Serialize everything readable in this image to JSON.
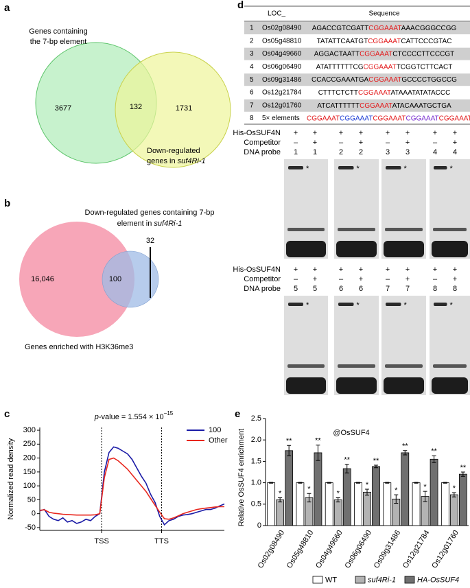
{
  "panel_a": {
    "label": "a",
    "title_lines": [
      "Genes containing",
      "the 7-bp element"
    ],
    "only_left": "3677",
    "overlap": "132",
    "only_right": "1731",
    "right_line1": "Down-regulated",
    "right_line2": "genes in ",
    "right_gene": "suf4Ri-1"
  },
  "panel_b": {
    "label": "b",
    "title_line1": "Down-regulated genes containing 7-bp",
    "title_line2": "element in ",
    "title_gene": "suf4Ri-1",
    "only_big": "16,046",
    "overlap": "100",
    "only_small": "32",
    "caption": "Genes enriched with H3K36me3"
  },
  "panel_d": {
    "label": "d",
    "table": {
      "header": [
        "LOC_",
        "Sequence"
      ],
      "rows": [
        {
          "index": "1",
          "locus": "Os02g08490",
          "sequence": [
            {
              "text": "AGACCGTCGATT",
              "color": "#000000"
            },
            {
              "text": "CGGAAAT",
              "color": "#e31a1c"
            },
            {
              "text": "AAACGGGCCGG",
              "color": "#000000"
            }
          ]
        },
        {
          "index": "2",
          "locus": "Os05g48810",
          "sequence": [
            {
              "text": "TATATTCAATGT",
              "color": "#000000"
            },
            {
              "text": "CGGAAAT",
              "color": "#e31a1c"
            },
            {
              "text": "CATTCCCGTAC",
              "color": "#000000"
            }
          ]
        },
        {
          "index": "3",
          "locus": "Os04g49660",
          "sequence": [
            {
              "text": "AGGACTAATT",
              "color": "#000000"
            },
            {
              "text": "CGGAAAT",
              "color": "#e31a1c"
            },
            {
              "text": "CTCCCCTTCCCGT",
              "color": "#000000"
            }
          ]
        },
        {
          "index": "4",
          "locus": "Os06g06490",
          "sequence": [
            {
              "text": "ATATTTTTTCG",
              "color": "#000000"
            },
            {
              "text": "CGGAAAT",
              "color": "#e31a1c"
            },
            {
              "text": "TCGGTCTTCACT",
              "color": "#000000"
            }
          ]
        },
        {
          "index": "5",
          "locus": "Os09g31486",
          "sequence": [
            {
              "text": "CCACCGAAATGA",
              "color": "#000000"
            },
            {
              "text": "CGGAAAT",
              "color": "#e31a1c"
            },
            {
              "text": "GCCCCTGGCCG",
              "color": "#000000"
            }
          ]
        },
        {
          "index": "6",
          "locus": "Os12g21784",
          "sequence": [
            {
              "text": "CTTTCTCTT",
              "color": "#000000"
            },
            {
              "text": "CGGAAAT",
              "color": "#e31a1c"
            },
            {
              "text": "ATAAATATATACCC",
              "color": "#000000"
            }
          ]
        },
        {
          "index": "7",
          "locus": "Os12g01760",
          "sequence": [
            {
              "text": "ATCATTTTTT",
              "color": "#000000"
            },
            {
              "text": "CGGAAAT",
              "color": "#e31a1c"
            },
            {
              "text": "ATACAAATGCTGA",
              "color": "#000000"
            }
          ]
        },
        {
          "index": "8",
          "locus": "5× elements",
          "sequence": [
            {
              "text": "CGGAAAT",
              "color": "#e31a1c"
            },
            {
              "text": "CGGAAAT",
              "color": "#1f3fd6"
            },
            {
              "text": "CGGAAAT",
              "color": "#e31a1c"
            },
            {
              "text": "CGGAAAT",
              "color": "#7a2fd0"
            },
            {
              "text": "CGGAAAT",
              "color": "#e31a1c"
            }
          ]
        }
      ]
    },
    "emsa": [
      {
        "row_labels": [
          "His-OsSUF4N",
          "Competitor",
          "DNA probe"
        ],
        "lanes": [
          [
            "+",
            "–",
            "1"
          ],
          [
            "+",
            "+",
            "1"
          ],
          [
            "+",
            "–",
            "2"
          ],
          [
            "+",
            "+",
            "2"
          ],
          [
            "+",
            "–",
            "3"
          ],
          [
            "+",
            "+",
            "3"
          ],
          [
            "+",
            "–",
            "4"
          ],
          [
            "+",
            "+",
            "4"
          ]
        ],
        "markers": [
          "*",
          "*",
          "*",
          "*"
        ]
      },
      {
        "row_labels": [
          "His-OsSUF4N",
          "Competitor",
          "DNA probe"
        ],
        "lanes": [
          [
            "+",
            "–",
            "5"
          ],
          [
            "+",
            "+",
            "5"
          ],
          [
            "+",
            "–",
            "6"
          ],
          [
            "+",
            "+",
            "6"
          ],
          [
            "+",
            "–",
            "7"
          ],
          [
            "+",
            "+",
            "7"
          ],
          [
            "+",
            "–",
            "8"
          ],
          [
            "+",
            "+",
            "8"
          ]
        ],
        "markers": [
          "*",
          "*",
          "*",
          "*"
        ]
      }
    ]
  },
  "chart_data": [
    {
      "type": "line",
      "label": "c",
      "title_italic": "p",
      "title_main": "-value = 1.554 × 10",
      "title_exponent": "−15",
      "ylabel": "Normalized read density",
      "x": [
        0,
        2.5,
        5,
        7.5,
        10,
        12.5,
        15,
        17.5,
        20,
        22.5,
        25,
        27.5,
        30,
        32.5,
        35,
        37.5,
        40,
        42.5,
        45,
        47.5,
        50,
        52.5,
        55,
        57.5,
        60,
        62.5,
        65,
        67.5,
        70,
        72.5,
        75,
        77.5,
        80,
        82.5,
        85,
        87.5,
        90,
        92.5,
        95,
        97.5,
        100
      ],
      "series": [
        {
          "name": "100",
          "color": "#1a1aa6",
          "values": [
            10,
            15,
            -10,
            -20,
            -25,
            -15,
            -30,
            -25,
            -35,
            -30,
            -20,
            -25,
            -10,
            0,
            150,
            220,
            240,
            235,
            225,
            215,
            195,
            165,
            135,
            110,
            70,
            40,
            -10,
            -40,
            -25,
            -20,
            -10,
            -5,
            -3,
            0,
            5,
            10,
            15,
            15,
            20,
            28,
            35
          ]
        },
        {
          "name": "Other",
          "color": "#e8261d",
          "values": [
            12,
            14,
            5,
            2,
            0,
            -2,
            -3,
            -4,
            -5,
            -5,
            -5,
            -5,
            -4,
            0,
            130,
            195,
            200,
            190,
            175,
            160,
            140,
            120,
            100,
            80,
            55,
            30,
            5,
            -18,
            -20,
            -15,
            -8,
            0,
            5,
            10,
            15,
            18,
            20,
            22,
            24,
            25,
            25
          ]
        }
      ],
      "xlim": [
        0,
        100
      ],
      "xticks": [
        {
          "value": 33.5,
          "label": "TSS"
        },
        {
          "value": 66,
          "label": "TTS"
        }
      ],
      "ylim": [
        -60,
        310
      ],
      "yticks": [
        -50,
        0,
        50,
        100,
        150,
        200,
        250,
        300
      ],
      "dashed_verticals": true,
      "legend": "upper right"
    },
    {
      "type": "bar",
      "label": "e",
      "title": "@OsSUF4",
      "ylabel": "Relative OsSUF4 enrichment",
      "categories": [
        "Os02g08490",
        "Os05g48810",
        "Os04g49660",
        "Os06g06490",
        "Os09g31486",
        "Os12g21784",
        "Os12g01760"
      ],
      "series": [
        {
          "name": "WT",
          "color": "#ffffff",
          "italic": false,
          "values": [
            1,
            1,
            1,
            1,
            1,
            1,
            1
          ],
          "errors": [
            0.01,
            0.01,
            0.01,
            0.01,
            0.01,
            0.01,
            0.01
          ]
        },
        {
          "name": "suf4Ri-1",
          "color": "#b3b3b3",
          "italic": true,
          "values": [
            0.6,
            0.65,
            0.6,
            0.78,
            0.62,
            0.68,
            0.72
          ],
          "errors": [
            0.05,
            0.1,
            0.05,
            0.07,
            0.1,
            0.12,
            0.05
          ],
          "significance": [
            "*",
            "*",
            "*",
            "*",
            "*",
            "*",
            "*"
          ]
        },
        {
          "name": "HA-OsSUF4",
          "color": "#707070",
          "italic": true,
          "values": [
            1.75,
            1.7,
            1.33,
            1.38,
            1.7,
            1.55,
            1.2
          ],
          "errors": [
            0.12,
            0.18,
            0.1,
            0.03,
            0.05,
            0.08,
            0.05
          ],
          "significance": [
            "**",
            "**",
            "**",
            "**",
            "**",
            "**",
            "**"
          ]
        }
      ],
      "ylim": [
        0,
        2.5
      ],
      "yticks": [
        0,
        0.5,
        {
          "value": 1,
          "label": "1.0"
        },
        1.5,
        {
          "value": 2,
          "label": "2.0"
        },
        2.5
      ],
      "legend": "bottom"
    }
  ]
}
